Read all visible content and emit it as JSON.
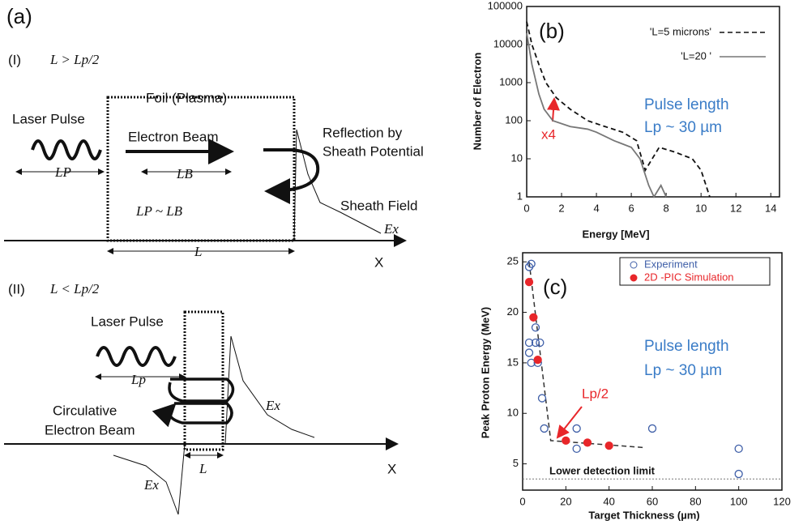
{
  "panel_a": {
    "label": "(a)",
    "case1": {
      "label": "(I)",
      "condition": "L > Lp/2",
      "foil": "Foil (Plasma)",
      "laser": "Laser Pulse",
      "beam": "Electron Beam",
      "reflection": [
        "Reflection by",
        "Sheath Potential"
      ],
      "sheath": "Sheath Field",
      "field": "Ex",
      "pulse_length": "LP",
      "beam_length": "LB",
      "relation": "LP ~ LB",
      "thickness": "L",
      "axis": "X"
    },
    "case2": {
      "label": "(II)",
      "condition": "L < Lp/2",
      "laser": "Laser Pulse",
      "pulse_length": "Lp",
      "beam": [
        "Circulative",
        "Electron Beam"
      ],
      "field_top": "Ex",
      "field_bottom": "Ex",
      "thickness": "L",
      "axis": "X"
    }
  },
  "chart_data": [
    {
      "type": "line",
      "title": "(b)",
      "x_label": "Energy [MeV]",
      "y_label": "Number of Electron",
      "xlim": [
        0,
        14.5
      ],
      "xticks": [
        0,
        2,
        4,
        6,
        8,
        10,
        12,
        14
      ],
      "ylim": [
        1,
        100000
      ],
      "yticks": [
        1,
        10,
        100,
        1000,
        10000,
        100000
      ],
      "yscale": "log",
      "legend": "upper right",
      "series": [
        {
          "name": "'L=5 microns'",
          "color": "#111111",
          "dash": "dashed",
          "x": [
            0,
            0.3,
            0.7,
            1.1,
            1.7,
            2.5,
            3.5,
            4.5,
            5.5,
            6.3,
            6.8,
            7.2,
            7.6,
            8.5,
            9.5,
            10,
            10.5
          ],
          "values": [
            40000,
            10000,
            3000,
            1000,
            400,
            200,
            100,
            70,
            50,
            30,
            5,
            10,
            20,
            15,
            10,
            5,
            1
          ]
        },
        {
          "name": "'L=20 '",
          "color": "#777777",
          "dash": "solid",
          "x": [
            0,
            0.3,
            0.7,
            1,
            1.5,
            2.5,
            3.5,
            4,
            5,
            6,
            6.5,
            7,
            7.3,
            7.7,
            8
          ],
          "values": [
            20000,
            3000,
            500,
            200,
            100,
            70,
            60,
            50,
            30,
            20,
            10,
            2,
            1,
            2,
            1
          ]
        }
      ],
      "annotations": [
        "x4",
        "Pulse length",
        "Lp ~ 30 µm"
      ]
    },
    {
      "type": "scatter",
      "title": "(c)",
      "x_label": "Target Thickness (µm)",
      "y_label": "Peak Proton Energy (MeV)",
      "xlim": [
        0,
        120
      ],
      "xticks": [
        0,
        20,
        40,
        60,
        80,
        100,
        120
      ],
      "ylim": [
        2.4,
        25.9
      ],
      "yticks": [
        5,
        10,
        15,
        20,
        25
      ],
      "legend": "upper right",
      "detection_limit": 3.5,
      "series": [
        {
          "name": "Experiment",
          "color": "#3f5fa8",
          "marker": "open",
          "x": [
            3,
            4,
            3,
            3,
            4,
            6,
            6,
            8,
            7,
            9,
            10,
            25,
            25,
            60,
            100,
            100
          ],
          "values": [
            24.5,
            24.8,
            17,
            16,
            15,
            18.5,
            17,
            17,
            15,
            11.5,
            8.5,
            8.5,
            6.5,
            8.5,
            6.5,
            4
          ]
        },
        {
          "name": "2D -PIC Simulation",
          "color": "#e8262a",
          "marker": "filled",
          "x": [
            3,
            5,
            7,
            20,
            30,
            40
          ],
          "values": [
            23,
            19.5,
            15.3,
            7.3,
            7.1,
            6.8
          ]
        }
      ],
      "annotations": [
        "Lower detection limit",
        "Lp/2",
        "Pulse length",
        "Lp ~ 30 µm"
      ]
    }
  ]
}
